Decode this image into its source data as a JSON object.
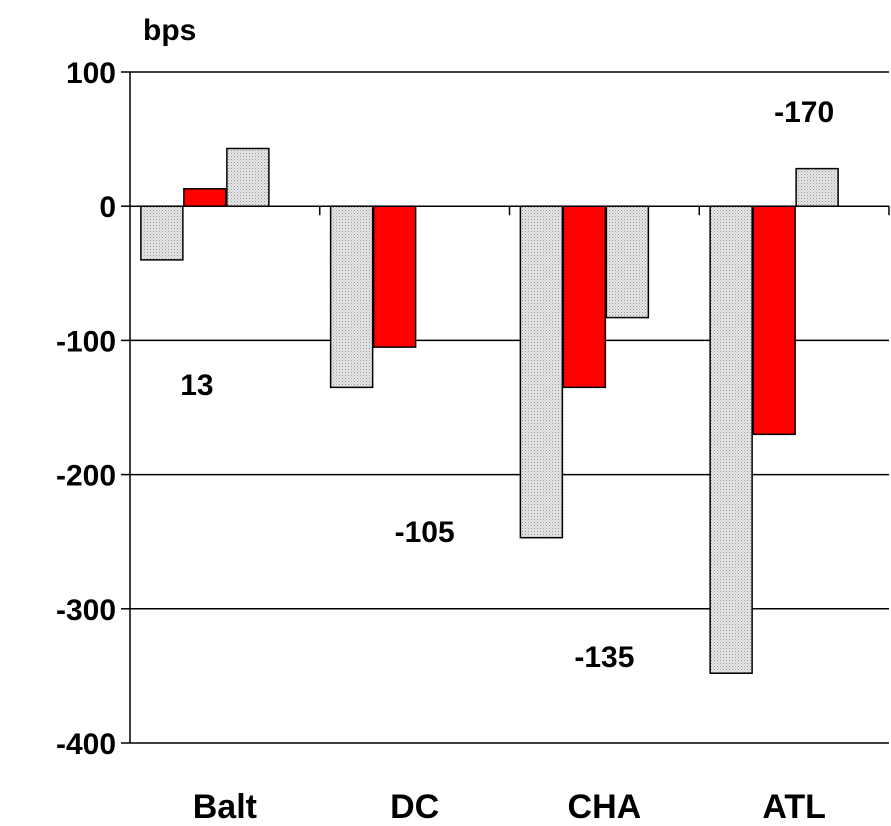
{
  "chart_data": {
    "type": "bar",
    "title": "",
    "xlabel": "",
    "ylabel": "bps",
    "ylim": [
      -400,
      100
    ],
    "y_ticks": [
      100,
      0,
      -100,
      -200,
      -300,
      -400
    ],
    "grid": "horizontal",
    "categories": [
      "Balt",
      "DC",
      "CHA",
      "ATL"
    ],
    "series": [
      {
        "color": "#d9d9d9",
        "pattern": "dotted-gray",
        "values": [
          -40,
          -135,
          -247,
          -348
        ]
      },
      {
        "color": "#ff0000",
        "values": [
          13,
          -105,
          -135,
          -170
        ]
      },
      {
        "color": "#d9d9d9",
        "pattern": "dotted-gray",
        "values": [
          43,
          null,
          -83,
          28
        ]
      }
    ],
    "data_labels": [
      "13",
      "-105",
      "-135",
      "-170"
    ]
  }
}
